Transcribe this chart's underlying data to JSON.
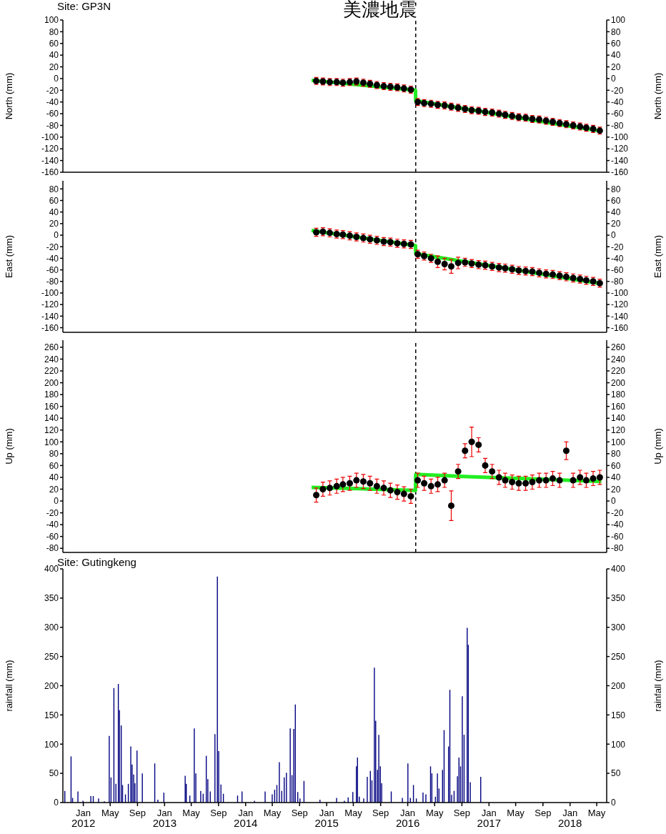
{
  "chart_data": [
    {
      "type": "scatter",
      "title": "美濃地震",
      "subtitle": "Site: GP3N",
      "ylabel": "North (mm)",
      "y2label": "North (mm)",
      "xlim": [
        "2011-10-01",
        "2018-06-15"
      ],
      "xticks": [
        {
          "value": "2012-01-01",
          "label": null
        },
        {
          "value": "2012-05-01",
          "label": null
        },
        {
          "value": "2012-09-01",
          "label": null
        },
        {
          "value": "2013-01-01",
          "label": null
        },
        {
          "value": "2013-05-01",
          "label": null
        },
        {
          "value": "2013-09-01",
          "label": null
        },
        {
          "value": "2014-01-01",
          "label": null
        },
        {
          "value": "2014-05-01",
          "label": null
        },
        {
          "value": "2014-09-01",
          "label": null
        },
        {
          "value": "2015-01-01",
          "label": null
        },
        {
          "value": "2015-05-01",
          "label": null
        },
        {
          "value": "2015-09-01",
          "label": null
        },
        {
          "value": "2016-01-01",
          "label": null
        },
        {
          "value": "2016-05-01",
          "label": null
        },
        {
          "value": "2016-09-01",
          "label": null
        },
        {
          "value": "2017-01-01",
          "label": null
        },
        {
          "value": "2017-05-01",
          "label": null
        },
        {
          "value": "2017-09-01",
          "label": null
        },
        {
          "value": "2018-01-01",
          "label": null
        },
        {
          "value": "2018-05-01",
          "label": null
        }
      ],
      "ylim": [
        -160,
        100
      ],
      "yticks": [
        -160,
        -140,
        -120,
        -100,
        -80,
        -60,
        -40,
        -20,
        0,
        20,
        40,
        60,
        80,
        100
      ],
      "y2lim": [
        -160,
        100
      ],
      "y2ticks": [
        -160,
        -140,
        -120,
        -100,
        -80,
        -60,
        -40,
        -20,
        0,
        20,
        40,
        60,
        80,
        100
      ],
      "tick_labels": "y",
      "ref_lines": [
        {
          "axis": "x",
          "value": "2016-02-06",
          "color": "#000000",
          "line_style": "dashed"
        }
      ],
      "series": [
        {
          "color": "#000000",
          "x": [
            "2014-11-15",
            "2014-12-15",
            "2015-01-15",
            "2015-02-15",
            "2015-03-15",
            "2015-04-15",
            "2015-05-15",
            "2015-06-15",
            "2015-07-15",
            "2015-08-15",
            "2015-09-15",
            "2015-10-15",
            "2015-11-15",
            "2015-12-15",
            "2016-01-15",
            "2016-02-15",
            "2016-03-15",
            "2016-04-15",
            "2016-05-15",
            "2016-06-15",
            "2016-07-15",
            "2016-08-15",
            "2016-09-15",
            "2016-10-15",
            "2016-11-15",
            "2016-12-15",
            "2017-01-15",
            "2017-02-15",
            "2017-03-15",
            "2017-04-15",
            "2017-05-15",
            "2017-06-15",
            "2017-07-15",
            "2017-08-15",
            "2017-09-15",
            "2017-10-15",
            "2017-11-15",
            "2017-12-15",
            "2018-01-15",
            "2018-02-15",
            "2018-03-15",
            "2018-04-15",
            "2018-05-15"
          ],
          "marker": "circle",
          "values": [
            -4,
            -5,
            -6,
            -6,
            -7,
            -6,
            -5,
            -7,
            -9,
            -11,
            -13,
            -14,
            -15,
            -17,
            -19,
            -40,
            -42,
            -43,
            -45,
            -46,
            -48,
            -50,
            -52,
            -54,
            -55,
            -57,
            -58,
            -60,
            -62,
            -64,
            -66,
            -67,
            -69,
            -70,
            -72,
            -74,
            -76,
            -78,
            -80,
            -82,
            -84,
            -86,
            -89
          ],
          "errors": [
            6,
            6,
            6,
            6,
            6,
            6,
            6,
            6,
            6,
            6,
            6,
            6,
            6,
            6,
            6,
            6,
            6,
            6,
            6,
            6,
            6,
            6,
            6,
            6,
            6,
            6,
            6,
            6,
            6,
            6,
            6,
            6,
            6,
            6,
            6,
            6,
            6,
            6,
            6,
            6,
            6,
            6,
            6
          ]
        },
        {
          "type": "line",
          "color": "#22ee22",
          "x": [
            "2014-10-25",
            "2016-02-05",
            "2016-02-06",
            "2018-05-22"
          ],
          "values": [
            -3,
            -20,
            -38,
            -90
          ]
        }
      ]
    },
    {
      "type": "scatter",
      "ylabel": "East (mm)",
      "y2label": "East (mm)",
      "xlim": [
        "2011-10-01",
        "2018-06-15"
      ],
      "xticks": [
        {
          "value": "2012-01-01",
          "label": null
        },
        {
          "value": "2012-05-01",
          "label": null
        },
        {
          "value": "2012-09-01",
          "label": null
        },
        {
          "value": "2013-01-01",
          "label": null
        },
        {
          "value": "2013-05-01",
          "label": null
        },
        {
          "value": "2013-09-01",
          "label": null
        },
        {
          "value": "2014-01-01",
          "label": null
        },
        {
          "value": "2014-05-01",
          "label": null
        },
        {
          "value": "2014-09-01",
          "label": null
        },
        {
          "value": "2015-01-01",
          "label": null
        },
        {
          "value": "2015-05-01",
          "label": null
        },
        {
          "value": "2015-09-01",
          "label": null
        },
        {
          "value": "2016-01-01",
          "label": null
        },
        {
          "value": "2016-05-01",
          "label": null
        },
        {
          "value": "2016-09-01",
          "label": null
        },
        {
          "value": "2017-01-01",
          "label": null
        },
        {
          "value": "2017-05-01",
          "label": null
        },
        {
          "value": "2017-09-01",
          "label": null
        },
        {
          "value": "2018-01-01",
          "label": null
        },
        {
          "value": "2018-05-01",
          "label": null
        }
      ],
      "ylim": [
        -168,
        94
      ],
      "yticks": [
        -160,
        -140,
        -120,
        -100,
        -80,
        -60,
        -40,
        -20,
        0,
        20,
        40,
        60,
        80
      ],
      "y2lim": [
        -168,
        94
      ],
      "y2ticks": [
        -160,
        -140,
        -120,
        -100,
        -80,
        -60,
        -40,
        -20,
        0,
        20,
        40,
        60,
        80
      ],
      "tick_labels": "y",
      "ref_lines": [
        {
          "axis": "x",
          "value": "2016-02-06",
          "color": "#000000",
          "line_style": "dashed"
        }
      ],
      "series": [
        {
          "color": "#000000",
          "x": [
            "2014-11-15",
            "2014-12-15",
            "2015-01-15",
            "2015-02-15",
            "2015-03-15",
            "2015-04-15",
            "2015-05-15",
            "2015-06-15",
            "2015-07-15",
            "2015-08-15",
            "2015-09-15",
            "2015-10-15",
            "2015-11-15",
            "2015-12-15",
            "2016-01-15",
            "2016-02-15",
            "2016-03-15",
            "2016-04-15",
            "2016-05-15",
            "2016-06-15",
            "2016-07-15",
            "2016-08-15",
            "2016-09-15",
            "2016-10-15",
            "2016-11-15",
            "2016-12-15",
            "2017-01-15",
            "2017-02-15",
            "2017-03-15",
            "2017-04-15",
            "2017-05-15",
            "2017-06-15",
            "2017-07-15",
            "2017-08-15",
            "2017-09-15",
            "2017-10-15",
            "2017-11-15",
            "2017-12-15",
            "2018-01-15",
            "2018-02-15",
            "2018-03-15",
            "2018-04-15",
            "2018-05-15"
          ],
          "marker": "circle",
          "values": [
            5,
            6,
            4,
            2,
            1,
            -1,
            -3,
            -5,
            -7,
            -9,
            -11,
            -12,
            -14,
            -15,
            -16,
            -33,
            -36,
            -40,
            -46,
            -50,
            -54,
            -48,
            -47,
            -49,
            -51,
            -52,
            -54,
            -56,
            -57,
            -59,
            -61,
            -62,
            -63,
            -65,
            -67,
            -68,
            -70,
            -72,
            -74,
            -76,
            -78,
            -80,
            -83
          ],
          "errors": [
            7,
            7,
            7,
            7,
            7,
            7,
            7,
            7,
            7,
            7,
            7,
            7,
            7,
            7,
            7,
            7,
            7,
            7,
            10,
            10,
            12,
            10,
            7,
            7,
            7,
            7,
            7,
            7,
            7,
            7,
            7,
            7,
            7,
            7,
            7,
            7,
            7,
            7,
            7,
            7,
            7,
            7,
            7
          ]
        },
        {
          "type": "line",
          "color": "#22ee22",
          "x": [
            "2014-10-25",
            "2016-02-05",
            "2016-02-06",
            "2018-05-22"
          ],
          "values": [
            8,
            -18,
            -32,
            -84
          ]
        }
      ]
    },
    {
      "type": "scatter",
      "ylabel": "Up (mm)",
      "y2label": "Up (mm)",
      "xlim": [
        "2011-10-01",
        "2018-06-15"
      ],
      "xticks": [
        {
          "value": "2012-01-01",
          "label": null
        },
        {
          "value": "2012-05-01",
          "label": null
        },
        {
          "value": "2012-09-01",
          "label": null
        },
        {
          "value": "2013-01-01",
          "label": null
        },
        {
          "value": "2013-05-01",
          "label": null
        },
        {
          "value": "2013-09-01",
          "label": null
        },
        {
          "value": "2014-01-01",
          "label": null
        },
        {
          "value": "2014-05-01",
          "label": null
        },
        {
          "value": "2014-09-01",
          "label": null
        },
        {
          "value": "2015-01-01",
          "label": null
        },
        {
          "value": "2015-05-01",
          "label": null
        },
        {
          "value": "2015-09-01",
          "label": null
        },
        {
          "value": "2016-01-01",
          "label": null
        },
        {
          "value": "2016-05-01",
          "label": null
        },
        {
          "value": "2016-09-01",
          "label": null
        },
        {
          "value": "2017-01-01",
          "label": null
        },
        {
          "value": "2017-05-01",
          "label": null
        },
        {
          "value": "2017-09-01",
          "label": null
        },
        {
          "value": "2018-01-01",
          "label": null
        },
        {
          "value": "2018-05-01",
          "label": null
        }
      ],
      "ylim": [
        -87,
        272
      ],
      "yticks": [
        -80,
        -60,
        -40,
        -20,
        0,
        20,
        40,
        60,
        80,
        100,
        120,
        140,
        160,
        180,
        200,
        220,
        240,
        260
      ],
      "y2lim": [
        -87,
        272
      ],
      "y2ticks": [
        -80,
        -60,
        -40,
        -20,
        0,
        20,
        40,
        60,
        80,
        100,
        120,
        140,
        160,
        180,
        200,
        220,
        240,
        260
      ],
      "tick_labels": "y",
      "ref_lines": [
        {
          "axis": "x",
          "value": "2016-02-06",
          "color": "#000000",
          "line_style": "dashed"
        }
      ],
      "series": [
        {
          "color": "#000000",
          "x": [
            "2014-11-15",
            "2014-12-15",
            "2015-01-15",
            "2015-02-15",
            "2015-03-15",
            "2015-04-15",
            "2015-05-15",
            "2015-06-15",
            "2015-07-15",
            "2015-08-15",
            "2015-09-15",
            "2015-10-15",
            "2015-11-15",
            "2015-12-15",
            "2016-01-15",
            "2016-02-15",
            "2016-03-15",
            "2016-04-15",
            "2016-05-15",
            "2016-06-15",
            "2016-07-15",
            "2016-08-15",
            "2016-09-15",
            "2016-10-15",
            "2016-11-15",
            "2016-12-15",
            "2017-01-15",
            "2017-02-15",
            "2017-03-15",
            "2017-04-15",
            "2017-05-15",
            "2017-06-15",
            "2017-07-15",
            "2017-08-15",
            "2017-09-15",
            "2017-10-15",
            "2017-11-15",
            "2017-12-15",
            "2018-01-15",
            "2018-02-15",
            "2018-03-15",
            "2018-04-15",
            "2018-05-15"
          ],
          "marker": "circle",
          "values": [
            10,
            20,
            22,
            25,
            28,
            30,
            35,
            33,
            30,
            25,
            22,
            18,
            15,
            12,
            8,
            35,
            30,
            25,
            28,
            35,
            -8,
            50,
            85,
            100,
            95,
            60,
            50,
            40,
            35,
            32,
            30,
            30,
            32,
            35,
            35,
            38,
            35,
            85,
            35,
            40,
            35,
            38,
            40
          ],
          "errors": [
            12,
            12,
            12,
            12,
            12,
            12,
            12,
            12,
            12,
            12,
            12,
            12,
            12,
            12,
            12,
            12,
            12,
            12,
            12,
            12,
            25,
            12,
            12,
            25,
            12,
            12,
            12,
            12,
            12,
            12,
            12,
            12,
            12,
            12,
            12,
            12,
            12,
            15,
            12,
            12,
            12,
            12,
            12
          ]
        },
        {
          "type": "line",
          "color": "#22ee22",
          "x": [
            "2014-10-25",
            "2016-02-05",
            "2016-02-06",
            "2016-10-01",
            "2017-01-01",
            "2018-05-22"
          ],
          "values": [
            23,
            18,
            45,
            41,
            40,
            33
          ]
        }
      ]
    },
    {
      "type": "bar",
      "title": "Site: Gutingkeng",
      "ylabel": "rainfall (mm)",
      "y2label": "rainfall (mm)",
      "xlim": [
        "2011-10-01",
        "2018-06-15"
      ],
      "xticks": [
        {
          "value": "2012-01-01",
          "label": "Jan 2012"
        },
        {
          "value": "2012-05-01",
          "label": "May"
        },
        {
          "value": "2012-09-01",
          "label": "Sep"
        },
        {
          "value": "2013-01-01",
          "label": "Jan 2013"
        },
        {
          "value": "2013-05-01",
          "label": "May"
        },
        {
          "value": "2013-09-01",
          "label": "Sep"
        },
        {
          "value": "2014-01-01",
          "label": "Jan 2014"
        },
        {
          "value": "2014-05-01",
          "label": "May"
        },
        {
          "value": "2014-09-01",
          "label": "Sep"
        },
        {
          "value": "2015-01-01",
          "label": "Jan 2015"
        },
        {
          "value": "2015-05-01",
          "label": "May"
        },
        {
          "value": "2015-09-01",
          "label": "Sep"
        },
        {
          "value": "2016-01-01",
          "label": "Jan 2016"
        },
        {
          "value": "2016-05-01",
          "label": "May"
        },
        {
          "value": "2016-09-01",
          "label": "Sep"
        },
        {
          "value": "2017-01-01",
          "label": "Jan 2017"
        },
        {
          "value": "2017-05-01",
          "label": "May"
        },
        {
          "value": "2017-09-01",
          "label": "Sep"
        },
        {
          "value": "2018-01-01",
          "label": "Jan 2018"
        },
        {
          "value": "2018-05-01",
          "label": "May"
        }
      ],
      "ylim": [
        0,
        400
      ],
      "yticks": [
        0,
        50,
        100,
        150,
        200,
        250,
        300,
        350,
        400
      ],
      "y2lim": [
        0,
        400
      ],
      "y2ticks": [
        0,
        50,
        100,
        150,
        200,
        250,
        300,
        350,
        400
      ],
      "series": [
        {
          "color": "#000080",
          "x": [
            "2011-10-10",
            "2011-11-07",
            "2011-11-14",
            "2011-12-08",
            "2011-12-31",
            "2012-02-04",
            "2012-02-15",
            "2012-03-10",
            "2012-04-05",
            "2012-04-27",
            "2012-05-05",
            "2012-05-18",
            "2012-05-27",
            "2012-06-07",
            "2012-06-12",
            "2012-06-20",
            "2012-06-26",
            "2012-07-09",
            "2012-07-22",
            "2012-08-02",
            "2012-08-08",
            "2012-08-15",
            "2012-08-21",
            "2012-08-30",
            "2012-09-23",
            "2012-11-18",
            "2012-12-02",
            "2012-12-29",
            "2013-04-04",
            "2013-04-09",
            "2013-04-25",
            "2013-05-15",
            "2013-05-22",
            "2013-06-13",
            "2013-06-24",
            "2013-07-08",
            "2013-07-15",
            "2013-07-26",
            "2013-08-16",
            "2013-08-27",
            "2013-09-02",
            "2013-09-12",
            "2013-09-23",
            "2013-11-26",
            "2013-12-16",
            "2014-02-10",
            "2014-03-30",
            "2014-05-01",
            "2014-05-12",
            "2014-05-22",
            "2014-06-02",
            "2014-06-13",
            "2014-06-24",
            "2014-07-04",
            "2014-07-21",
            "2014-07-29",
            "2014-08-06",
            "2014-08-13",
            "2014-08-24",
            "2014-09-03",
            "2014-09-21",
            "2014-12-02",
            "2015-02-15",
            "2015-03-22",
            "2015-04-08",
            "2015-04-29",
            "2015-05-15",
            "2015-05-20",
            "2015-05-28",
            "2015-06-17",
            "2015-07-03",
            "2015-07-17",
            "2015-07-24",
            "2015-08-04",
            "2015-08-10",
            "2015-08-18",
            "2015-08-24",
            "2015-08-31",
            "2015-09-06",
            "2015-10-19",
            "2015-12-08",
            "2016-01-02",
            "2016-01-13",
            "2016-01-27",
            "2016-02-09",
            "2016-03-10",
            "2016-03-23",
            "2016-04-13",
            "2016-04-19",
            "2016-05-05",
            "2016-05-14",
            "2016-05-21",
            "2016-06-06",
            "2016-06-13",
            "2016-07-03",
            "2016-07-09",
            "2016-07-17",
            "2016-07-28",
            "2016-08-12",
            "2016-08-19",
            "2016-08-26",
            "2016-09-03",
            "2016-09-11",
            "2016-09-25",
            "2016-09-30",
            "2016-10-09",
            "2016-11-25"
          ],
          "values": [
            20,
            79,
            8,
            19,
            3,
            11,
            11,
            7,
            2,
            114,
            43,
            196,
            32,
            203,
            158,
            132,
            30,
            14,
            32,
            96,
            65,
            48,
            33,
            89,
            50,
            67,
            5,
            17,
            46,
            32,
            12,
            127,
            50,
            20,
            15,
            80,
            40,
            19,
            117,
            387,
            88,
            31,
            15,
            12,
            19,
            3,
            19,
            14,
            22,
            30,
            69,
            20,
            43,
            51,
            127,
            47,
            126,
            168,
            18,
            7,
            37,
            5,
            8,
            3,
            9,
            18,
            62,
            77,
            10,
            7,
            44,
            54,
            38,
            231,
            140,
            56,
            116,
            62,
            33,
            19,
            8,
            67,
            8,
            30,
            7,
            17,
            14,
            62,
            50,
            10,
            50,
            24,
            56,
            124,
            96,
            193,
            13,
            20,
            45,
            77,
            62,
            182,
            116,
            299,
            270,
            35,
            44
          ]
        }
      ]
    }
  ]
}
